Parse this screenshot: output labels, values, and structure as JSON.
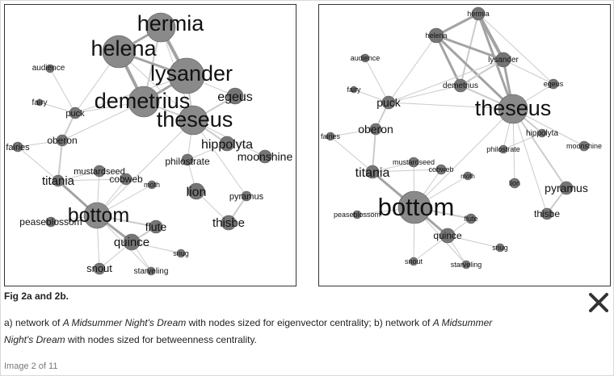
{
  "figure": {
    "title": "Fig 2a and 2b.",
    "caption": {
      "part1": "a) network of ",
      "italic1": "A Midsummer Night's Dream",
      "part2": " with nodes sized for eigenvector centrality; b) network of ",
      "italic2": "A Midsummer Night's Dream",
      "part3": " with nodes sized for betweenness centrality."
    },
    "counter": "Image 2 of 11",
    "close_icon": "close-x-icon"
  },
  "network_a": {
    "nodes": [
      {
        "id": "hermia",
        "label": "hermia"
      },
      {
        "id": "helena",
        "label": "helena"
      },
      {
        "id": "lysander",
        "label": "lysander"
      },
      {
        "id": "demetrius",
        "label": "demetrius"
      },
      {
        "id": "theseus",
        "label": "theseus"
      },
      {
        "id": "egeus",
        "label": "egeus"
      },
      {
        "id": "hippolyta",
        "label": "hippolyta"
      },
      {
        "id": "philostrate",
        "label": "philostrate"
      },
      {
        "id": "moonshine",
        "label": "moonshine"
      },
      {
        "id": "audience",
        "label": "audience"
      },
      {
        "id": "fairy",
        "label": "fairy"
      },
      {
        "id": "puck",
        "label": "puck"
      },
      {
        "id": "oberon",
        "label": "oberon"
      },
      {
        "id": "fairies",
        "label": "fairies"
      },
      {
        "id": "titania",
        "label": "titania"
      },
      {
        "id": "mustardseed",
        "label": "mustardseed"
      },
      {
        "id": "cobweb",
        "label": "cobweb"
      },
      {
        "id": "moth",
        "label": "moth"
      },
      {
        "id": "lion",
        "label": "lion"
      },
      {
        "id": "pyramus",
        "label": "pyramus"
      },
      {
        "id": "thisbe",
        "label": "thisbe"
      },
      {
        "id": "bottom",
        "label": "bottom"
      },
      {
        "id": "peaseblossom",
        "label": "peaseblossom"
      },
      {
        "id": "flute",
        "label": "flute"
      },
      {
        "id": "quince",
        "label": "quince"
      },
      {
        "id": "snug",
        "label": "snug"
      },
      {
        "id": "snout",
        "label": "snout"
      },
      {
        "id": "starveling",
        "label": "starveling"
      }
    ]
  },
  "network_b": {
    "nodes": [
      {
        "id": "hermia",
        "label": "hermia"
      },
      {
        "id": "helena",
        "label": "helena"
      },
      {
        "id": "lysander",
        "label": "lysander"
      },
      {
        "id": "demetrius",
        "label": "demetrius"
      },
      {
        "id": "egeus",
        "label": "egeus"
      },
      {
        "id": "audience",
        "label": "audience"
      },
      {
        "id": "fairy",
        "label": "fairy"
      },
      {
        "id": "puck",
        "label": "puck"
      },
      {
        "id": "theseus",
        "label": "theseus"
      },
      {
        "id": "hippolyta",
        "label": "hippolyta"
      },
      {
        "id": "oberon",
        "label": "oberon"
      },
      {
        "id": "fairies",
        "label": "fairies"
      },
      {
        "id": "philostrate",
        "label": "philostrate"
      },
      {
        "id": "moonshine",
        "label": "moonshine"
      },
      {
        "id": "mustardseed",
        "label": "mustardseed"
      },
      {
        "id": "cobweb",
        "label": "cobweb"
      },
      {
        "id": "titania",
        "label": "titania"
      },
      {
        "id": "moth",
        "label": "moth"
      },
      {
        "id": "lion",
        "label": "lion"
      },
      {
        "id": "pyramus",
        "label": "pyramus"
      },
      {
        "id": "bottom",
        "label": "bottom"
      },
      {
        "id": "peaseblossom",
        "label": "peaseblossom"
      },
      {
        "id": "thisbe",
        "label": "thisbe"
      },
      {
        "id": "flute",
        "label": "flute"
      },
      {
        "id": "quince",
        "label": "quince"
      },
      {
        "id": "snug",
        "label": "snug"
      },
      {
        "id": "snout",
        "label": "snout"
      },
      {
        "id": "starveling",
        "label": "starveling"
      }
    ]
  }
}
